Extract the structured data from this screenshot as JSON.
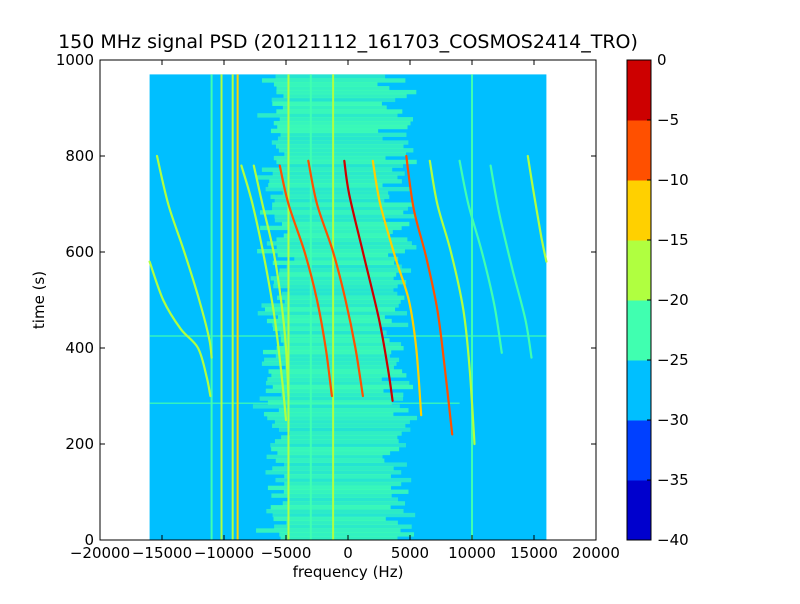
{
  "chart_data": {
    "type": "heatmap",
    "title": "150 MHz signal PSD (20121112_161703_COSMOS2414_TRO)",
    "xlabel": "frequency (Hz)",
    "ylabel": "time (s)",
    "xlim": [
      -20000,
      20000
    ],
    "ylim": [
      0,
      1000
    ],
    "xticks": [
      -20000,
      -15000,
      -10000,
      -5000,
      0,
      5000,
      10000,
      15000,
      20000
    ],
    "xtick_labels": [
      "−20000",
      "−15000",
      "−10000",
      "−5000",
      "0",
      "5000",
      "10000",
      "15000",
      "20000"
    ],
    "yticks": [
      0,
      200,
      400,
      600,
      800,
      1000
    ],
    "ytick_labels": [
      "0",
      "200",
      "400",
      "600",
      "800",
      "1000"
    ],
    "data_extent": {
      "x": [
        -16000,
        16000
      ],
      "y": [
        0,
        970
      ]
    },
    "background_level": -27.5,
    "colorbar": {
      "levels": [
        -40,
        -35,
        -30,
        -25,
        -20,
        -15,
        -10,
        -5,
        0
      ],
      "tick_labels": [
        "−40",
        "−35",
        "−30",
        "−25",
        "−20",
        "−15",
        "−10",
        "−5",
        "0"
      ],
      "colors": [
        "#0000cd",
        "#0040ff",
        "#00bfff",
        "#40ffb0",
        "#b0ff40",
        "#ffd000",
        "#ff5000",
        "#cd0000"
      ],
      "placement": "right"
    },
    "noise_band": {
      "x_center": -1000,
      "x_halfwidth": 5500,
      "level": -22.5
    },
    "vertical_lines": [
      {
        "x": -11000,
        "y_range": [
          0,
          970
        ],
        "level": -22.5
      },
      {
        "x": -10200,
        "y_range": [
          0,
          970
        ],
        "level": -17.5
      },
      {
        "x": -9300,
        "y_range": [
          0,
          970
        ],
        "level": -17.5
      },
      {
        "x": -8900,
        "y_range": [
          0,
          970
        ],
        "level": -12.5
      },
      {
        "x": -4800,
        "y_range": [
          0,
          970
        ],
        "level": -17.5
      },
      {
        "x": -3000,
        "y_range": [
          0,
          970
        ],
        "level": -22.5
      },
      {
        "x": -1200,
        "y_range": [
          0,
          970
        ],
        "level": -17.5
      },
      {
        "x": 10000,
        "y_range": [
          0,
          970
        ],
        "level": -22.5
      }
    ],
    "horizontal_lines": [
      {
        "y": 425,
        "x_range": [
          -16000,
          16000
        ],
        "level": -22.5
      },
      {
        "y": 285,
        "x_range": [
          -16000,
          9000
        ],
        "level": -22.5
      }
    ],
    "series": [
      {
        "x": [
          -15400,
          -14500,
          -13200,
          -12000,
          -11200,
          -11000
        ],
        "y": [
          800,
          700,
          600,
          500,
          420,
          380
        ],
        "level": -17.5
      },
      {
        "x": [
          -16000,
          -14900,
          -13500,
          -12100,
          -11400,
          -11100
        ],
        "y": [
          580,
          500,
          440,
          400,
          340,
          300
        ],
        "level": -17.5
      },
      {
        "x": [
          -7600,
          -6900,
          -6000,
          -5400,
          -5000,
          -4800
        ],
        "y": [
          780,
          700,
          600,
          500,
          400,
          300
        ],
        "level": -17.5
      },
      {
        "x": [
          -8600,
          -7700,
          -6700,
          -5900,
          -5300,
          -5000
        ],
        "y": [
          780,
          700,
          580,
          460,
          330,
          250
        ],
        "level": -20
      },
      {
        "x": [
          -5500,
          -4800,
          -3500,
          -2500,
          -1800,
          -1300
        ],
        "y": [
          780,
          700,
          600,
          500,
          400,
          300
        ],
        "level": -7.5
      },
      {
        "x": [
          -3200,
          -2500,
          -1200,
          -200,
          600,
          1200
        ],
        "y": [
          790,
          700,
          600,
          500,
          400,
          300
        ],
        "level": -7.5
      },
      {
        "x": [
          -300,
          100,
          1200,
          2500,
          3200,
          3600
        ],
        "y": [
          790,
          720,
          600,
          460,
          360,
          290
        ],
        "level": -2.5
      },
      {
        "x": [
          2000,
          2600,
          3800,
          4900,
          5500,
          5900
        ],
        "y": [
          790,
          700,
          590,
          500,
          400,
          260
        ],
        "level": -12.5
      },
      {
        "x": [
          4700,
          5300,
          6300,
          7200,
          7800,
          8400
        ],
        "y": [
          800,
          690,
          590,
          480,
          360,
          220
        ],
        "level": -7.5
      },
      {
        "x": [
          6600,
          7200,
          8300,
          9300,
          9800,
          10200
        ],
        "y": [
          790,
          700,
          600,
          480,
          360,
          200
        ],
        "level": -17.5
      },
      {
        "x": [
          9000,
          9700,
          10800,
          11800,
          12400
        ],
        "y": [
          790,
          700,
          600,
          490,
          390
        ],
        "level": -22.5
      },
      {
        "x": [
          11500,
          12200,
          13300,
          14300,
          14800
        ],
        "y": [
          780,
          680,
          560,
          460,
          380
        ],
        "level": -22.5
      },
      {
        "x": [
          14500,
          15000,
          15600,
          16000
        ],
        "y": [
          800,
          720,
          630,
          580
        ],
        "level": -20
      }
    ]
  }
}
